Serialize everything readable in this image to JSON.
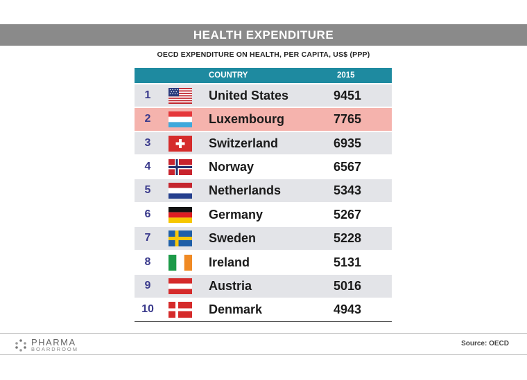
{
  "header": {
    "title": "HEALTH EXPENDITURE",
    "subtitle": "OECD EXPENDITURE ON HEALTH, PER CAPITA, US$ (PPP)"
  },
  "footer": {
    "logo_name": "PHARMA",
    "logo_sub": "BOARDROOM",
    "source": "Source: OECD"
  },
  "chart_data": {
    "type": "table",
    "columns": [
      "",
      "",
      "COUNTRY",
      "2015"
    ],
    "rows": [
      {
        "rank": "1",
        "country": "United States",
        "value": "9451",
        "flag": "us-flag-icon"
      },
      {
        "rank": "2",
        "country": "Luxembourg",
        "value": "7765",
        "flag": "luxembourg-flag-icon",
        "highlight": true
      },
      {
        "rank": "3",
        "country": "Switzerland",
        "value": "6935",
        "flag": "switzerland-flag-icon"
      },
      {
        "rank": "4",
        "country": "Norway",
        "value": "6567",
        "flag": "norway-flag-icon"
      },
      {
        "rank": "5",
        "country": "Netherlands",
        "value": "5343",
        "flag": "netherlands-flag-icon"
      },
      {
        "rank": "6",
        "country": "Germany",
        "value": "5267",
        "flag": "germany-flag-icon"
      },
      {
        "rank": "7",
        "country": "Sweden",
        "value": "5228",
        "flag": "sweden-flag-icon"
      },
      {
        "rank": "8",
        "country": "Ireland",
        "value": "5131",
        "flag": "ireland-flag-icon"
      },
      {
        "rank": "9",
        "country": "Austria",
        "value": "5016",
        "flag": "austria-flag-icon"
      },
      {
        "rank": "10",
        "country": "Denmark",
        "value": "4943",
        "flag": "denmark-flag-icon"
      }
    ],
    "colors": {
      "header_bar": "#8a8a8a",
      "table_header": "#1e8aa0",
      "highlight_row": "#f5b3ad",
      "shaded_row": "#e3e4e8",
      "rank_text": "#3a3a8c"
    }
  }
}
